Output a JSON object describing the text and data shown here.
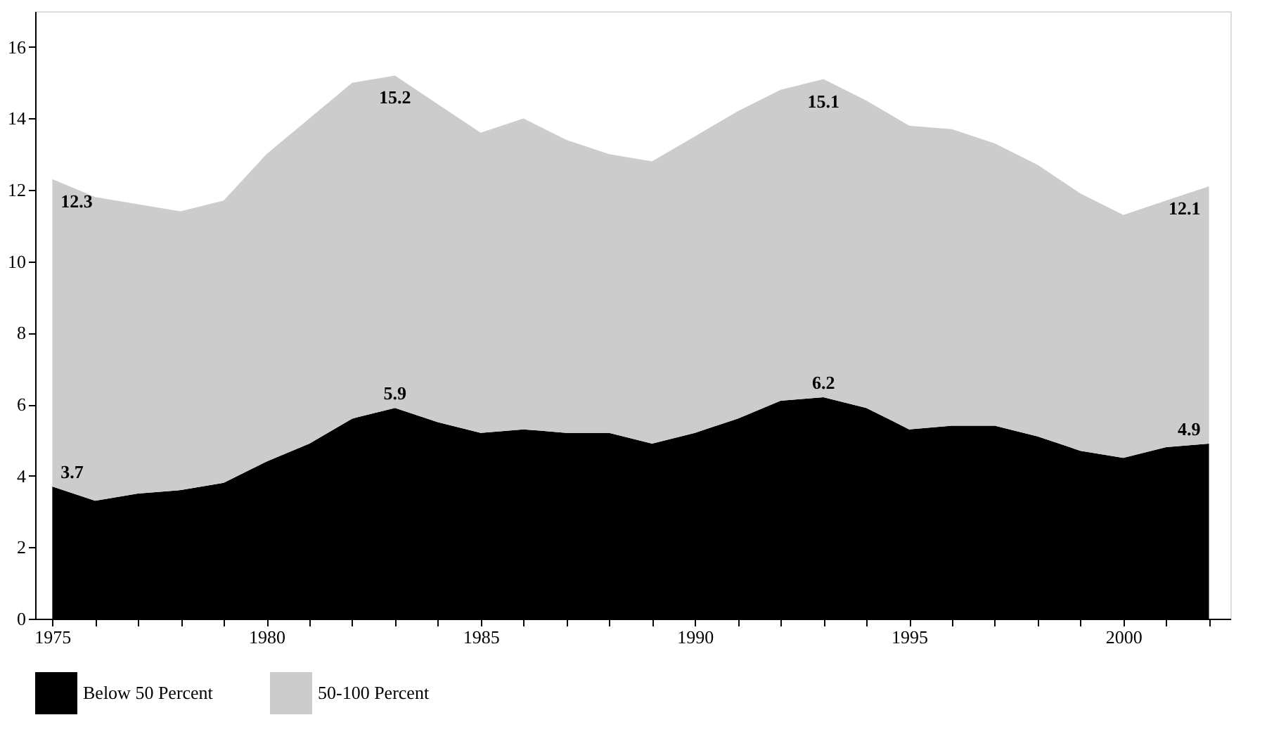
{
  "chart_data": {
    "type": "area",
    "stacked": true,
    "x": [
      1975,
      1976,
      1977,
      1978,
      1979,
      1980,
      1981,
      1982,
      1983,
      1984,
      1985,
      1986,
      1987,
      1988,
      1989,
      1990,
      1991,
      1992,
      1993,
      1994,
      1995,
      1996,
      1997,
      1998,
      1999,
      2000,
      2001,
      2002
    ],
    "series": [
      {
        "name": "Below 50 Percent",
        "color": "#000000",
        "values": [
          3.7,
          3.3,
          3.5,
          3.6,
          3.8,
          4.4,
          4.9,
          5.6,
          5.9,
          5.5,
          5.2,
          5.3,
          5.2,
          5.2,
          4.9,
          5.2,
          5.6,
          6.1,
          6.2,
          5.9,
          5.3,
          5.4,
          5.4,
          5.1,
          4.7,
          4.5,
          4.8,
          4.9
        ]
      },
      {
        "name": "50-100 Percent",
        "color": "#cccccc",
        "values": [
          8.6,
          8.5,
          8.1,
          7.8,
          7.9,
          8.6,
          9.1,
          9.4,
          9.3,
          8.9,
          8.4,
          8.7,
          8.2,
          7.8,
          7.9,
          8.3,
          8.6,
          8.7,
          8.9,
          8.6,
          8.5,
          8.3,
          7.9,
          7.6,
          7.2,
          6.8,
          6.9,
          7.2
        ]
      }
    ],
    "xlim": [
      1974.6,
      2002.5
    ],
    "xticks": [
      1975,
      {
        "value": 1976,
        "label": null
      },
      {
        "value": 1977,
        "label": null
      },
      {
        "value": 1978,
        "label": null
      },
      {
        "value": 1979,
        "label": null
      },
      1980,
      {
        "value": 1981,
        "label": null
      },
      {
        "value": 1982,
        "label": null
      },
      {
        "value": 1983,
        "label": null
      },
      {
        "value": 1984,
        "label": null
      },
      1985,
      {
        "value": 1986,
        "label": null
      },
      {
        "value": 1987,
        "label": null
      },
      {
        "value": 1988,
        "label": null
      },
      {
        "value": 1989,
        "label": null
      },
      1990,
      {
        "value": 1991,
        "label": null
      },
      {
        "value": 1992,
        "label": null
      },
      {
        "value": 1993,
        "label": null
      },
      {
        "value": 1994,
        "label": null
      },
      1995,
      {
        "value": 1996,
        "label": null
      },
      {
        "value": 1997,
        "label": null
      },
      {
        "value": 1998,
        "label": null
      },
      {
        "value": 1999,
        "label": null
      },
      2000,
      {
        "value": 2001,
        "label": null
      },
      {
        "value": 2002,
        "label": null
      }
    ],
    "ylim": [
      0,
      17
    ],
    "yticks": [
      0,
      2,
      4,
      6,
      8,
      10,
      12,
      14,
      16
    ],
    "grid": false,
    "legend": "bottom",
    "annotations": [
      {
        "text": "3.7",
        "x": 1975,
        "y": 3.7
      },
      {
        "text": "12.3",
        "x": 1975,
        "y": 12.3
      },
      {
        "text": "5.9",
        "x": 1983,
        "y": 5.9
      },
      {
        "text": "15.2",
        "x": 1983,
        "y": 15.2
      },
      {
        "text": "6.2",
        "x": 1993,
        "y": 6.2
      },
      {
        "text": "15.1",
        "x": 1993,
        "y": 15.1
      },
      {
        "text": "4.9",
        "x": 2002,
        "y": 4.9
      },
      {
        "text": "12.1",
        "x": 2002,
        "y": 12.1
      }
    ]
  }
}
